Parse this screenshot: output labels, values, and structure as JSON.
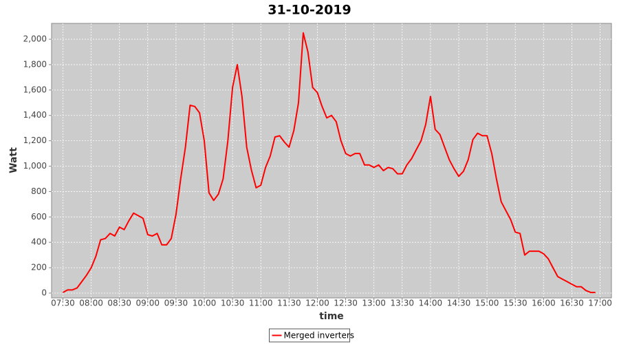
{
  "chart_data": {
    "type": "line",
    "title": "31-10-2019",
    "x_label": "time",
    "y_label": "Watt",
    "x": [
      "07:30",
      "07:35",
      "07:40",
      "07:45",
      "07:50",
      "07:55",
      "08:00",
      "08:05",
      "08:10",
      "08:15",
      "08:20",
      "08:25",
      "08:30",
      "08:35",
      "08:40",
      "08:45",
      "08:50",
      "08:55",
      "09:00",
      "09:05",
      "09:10",
      "09:15",
      "09:20",
      "09:25",
      "09:30",
      "09:35",
      "09:40",
      "09:45",
      "09:50",
      "09:55",
      "10:00",
      "10:05",
      "10:10",
      "10:15",
      "10:20",
      "10:25",
      "10:30",
      "10:35",
      "10:40",
      "10:45",
      "10:50",
      "10:55",
      "11:00",
      "11:05",
      "11:10",
      "11:15",
      "11:20",
      "11:25",
      "11:30",
      "11:35",
      "11:40",
      "11:45",
      "11:50",
      "11:55",
      "12:00",
      "12:05",
      "12:10",
      "12:15",
      "12:20",
      "12:25",
      "12:30",
      "12:35",
      "12:40",
      "12:45",
      "12:50",
      "12:55",
      "13:00",
      "13:05",
      "13:10",
      "13:15",
      "13:20",
      "13:25",
      "13:30",
      "13:35",
      "13:40",
      "13:45",
      "13:50",
      "13:55",
      "14:00",
      "14:05",
      "14:10",
      "14:15",
      "14:20",
      "14:25",
      "14:30",
      "14:35",
      "14:40",
      "14:45",
      "14:50",
      "14:55",
      "15:00",
      "15:05",
      "15:10",
      "15:15",
      "15:20",
      "15:25",
      "15:30",
      "15:35",
      "15:40",
      "15:45",
      "15:50",
      "15:55",
      "16:00",
      "16:05",
      "16:10",
      "16:15",
      "16:20",
      "16:25",
      "16:30",
      "16:35",
      "16:40",
      "16:45",
      "16:50",
      "16:55"
    ],
    "series": [
      {
        "name": "Merged inverters",
        "color": "#ff0000",
        "values": [
          5,
          25,
          25,
          40,
          90,
          140,
          200,
          290,
          420,
          430,
          470,
          450,
          520,
          500,
          570,
          630,
          610,
          590,
          460,
          450,
          470,
          380,
          380,
          430,
          620,
          900,
          1150,
          1480,
          1470,
          1420,
          1200,
          790,
          730,
          780,
          900,
          1200,
          1620,
          1800,
          1550,
          1150,
          970,
          830,
          850,
          990,
          1080,
          1230,
          1240,
          1190,
          1150,
          1280,
          1500,
          2050,
          1900,
          1620,
          1580,
          1470,
          1380,
          1400,
          1350,
          1200,
          1100,
          1080,
          1100,
          1100,
          1010,
          1010,
          990,
          1010,
          965,
          990,
          980,
          940,
          940,
          1010,
          1060,
          1130,
          1200,
          1330,
          1550,
          1290,
          1250,
          1150,
          1050,
          980,
          920,
          960,
          1050,
          1210,
          1260,
          1240,
          1240,
          1100,
          900,
          720,
          650,
          580,
          480,
          470,
          300,
          330,
          330,
          330,
          310,
          270,
          200,
          130,
          110,
          90,
          70,
          50,
          50,
          20,
          5,
          5
        ]
      }
    ],
    "xlim": [
      "07:18",
      "17:12"
    ],
    "xticks": [
      "07:30",
      "08:00",
      "08:30",
      "09:00",
      "09:30",
      "10:00",
      "10:30",
      "11:00",
      "11:30",
      "12:00",
      "12:30",
      "13:00",
      "13:30",
      "14:00",
      "14:30",
      "15:00",
      "15:30",
      "16:00",
      "16:30",
      "17:00"
    ],
    "ylim": [
      -38,
      2125
    ],
    "yticks": [
      0,
      200,
      400,
      600,
      800,
      {
        "value": 1000,
        "label": "1,000"
      },
      {
        "value": 1200,
        "label": "1,200"
      },
      {
        "value": 1400,
        "label": "1,400"
      },
      {
        "value": 1600,
        "label": "1,600"
      },
      {
        "value": 1800,
        "label": "1,800"
      },
      {
        "value": 2000,
        "label": "2,000"
      }
    ],
    "grid": true,
    "legend": "bottom"
  }
}
